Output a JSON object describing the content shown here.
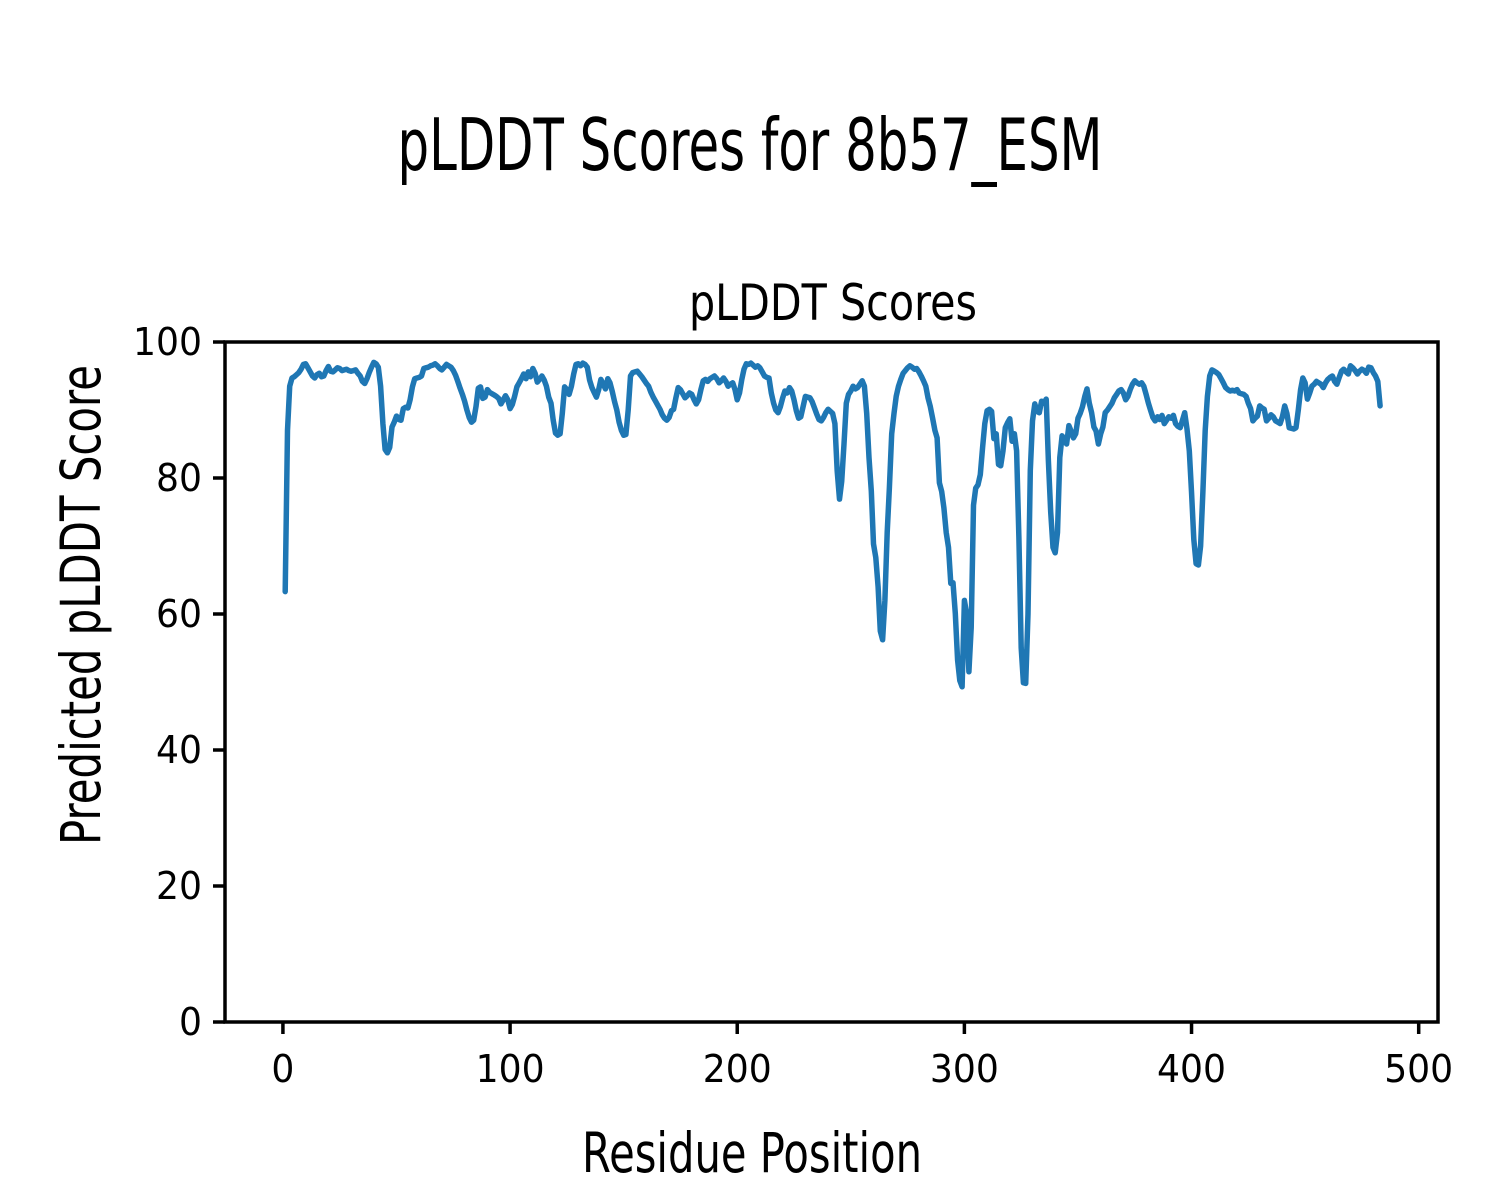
{
  "figure": {
    "suptitle": "pLDDT Scores for 8b57_ESM"
  },
  "chart_data": {
    "type": "line",
    "title": "pLDDT Scores",
    "xlabel": "Residue Position",
    "ylabel": "Predicted pLDDT Score",
    "xlim": [
      -25.5,
      508.5
    ],
    "ylim": [
      0,
      100
    ],
    "xticks": [
      0,
      100,
      200,
      300,
      400,
      500
    ],
    "yticks": [
      0,
      20,
      40,
      60,
      80,
      100
    ],
    "grid": false,
    "legend": "none",
    "line_color": "#1f77b4",
    "axis_color": "#000000",
    "background": "#ffffff",
    "series": [
      {
        "name": "pLDDT",
        "x_start": 1,
        "x_step": 1,
        "values": [
          63.3,
          87.0,
          93.5,
          94.7,
          94.9,
          95.2,
          95.5,
          96.0,
          96.7,
          96.8,
          96.2,
          95.6,
          95.0,
          94.7,
          95.2,
          95.4,
          94.9,
          95.0,
          95.8,
          96.4,
          95.7,
          95.6,
          95.9,
          96.2,
          96.1,
          95.8,
          95.9,
          96.0,
          95.8,
          95.7,
          95.8,
          95.9,
          95.4,
          95.0,
          94.2,
          93.9,
          94.6,
          95.5,
          96.3,
          97.0,
          96.8,
          96.3,
          93.5,
          88.0,
          84.2,
          83.7,
          84.5,
          87.5,
          88.2,
          89.1,
          88.6,
          88.5,
          90.2,
          90.4,
          90.3,
          91.5,
          93.4,
          94.6,
          94.7,
          94.8,
          95.0,
          96.1,
          96.2,
          96.3,
          96.5,
          96.6,
          96.8,
          96.5,
          96.1,
          95.9,
          96.3,
          96.7,
          96.5,
          96.3,
          95.8,
          95.1,
          94.2,
          93.2,
          92.3,
          91.3,
          90.0,
          88.9,
          88.2,
          88.5,
          90.5,
          93.2,
          93.4,
          91.7,
          91.9,
          93.0,
          92.6,
          92.4,
          92.2,
          92.0,
          91.7,
          90.9,
          91.5,
          92.1,
          91.5,
          90.2,
          90.8,
          92.0,
          93.4,
          94.0,
          94.6,
          95.3,
          94.6,
          95.6,
          94.9,
          96.1,
          95.4,
          94.1,
          94.5,
          95.0,
          94.4,
          93.5,
          91.9,
          91.0,
          88.5,
          86.6,
          86.3,
          86.5,
          89.5,
          93.4,
          93.0,
          92.3,
          93.5,
          95.3,
          96.7,
          96.8,
          96.5,
          96.9,
          96.7,
          96.3,
          94.4,
          93.3,
          92.6,
          91.9,
          93.0,
          94.5,
          93.8,
          93.1,
          94.6,
          94.0,
          92.7,
          91.2,
          90.0,
          88.2,
          87.0,
          86.3,
          86.4,
          90.0,
          95.0,
          95.5,
          95.6,
          95.7,
          95.3,
          94.9,
          94.4,
          93.9,
          93.5,
          92.6,
          91.9,
          91.3,
          90.7,
          90.1,
          89.3,
          88.8,
          88.5,
          88.9,
          89.9,
          90.1,
          91.8,
          93.3,
          93.0,
          92.4,
          91.8,
          92.1,
          92.5,
          92.3,
          91.5,
          90.9,
          91.5,
          93.0,
          94.3,
          94.5,
          94.2,
          94.6,
          94.8,
          95.0,
          94.6,
          94.0,
          94.3,
          94.7,
          94.2,
          93.5,
          93.8,
          94.0,
          93.0,
          91.5,
          92.5,
          94.5,
          96.0,
          96.8,
          96.7,
          96.9,
          96.6,
          96.3,
          96.5,
          96.2,
          95.6,
          95.0,
          94.8,
          94.7,
          92.5,
          91.0,
          90.0,
          89.6,
          90.5,
          91.8,
          92.8,
          92.5,
          93.3,
          92.8,
          91.5,
          89.9,
          88.8,
          89.0,
          90.5,
          92.0,
          91.9,
          91.8,
          91.2,
          90.3,
          89.4,
          88.6,
          88.4,
          88.9,
          89.6,
          90.1,
          89.8,
          89.5,
          88.0,
          81.0,
          76.9,
          79.5,
          85.0,
          91.0,
          92.3,
          92.8,
          93.5,
          93.1,
          93.3,
          93.8,
          94.3,
          93.5,
          89.5,
          83.0,
          78.1,
          70.3,
          68.3,
          64.0,
          57.5,
          56.2,
          62.0,
          72.0,
          78.6,
          86.5,
          89.5,
          92.0,
          93.5,
          94.5,
          95.4,
          95.8,
          96.2,
          96.5,
          96.3,
          96.0,
          96.1,
          95.6,
          95.0,
          94.3,
          93.5,
          91.8,
          90.5,
          88.8,
          87.0,
          85.9,
          79.3,
          78.0,
          75.6,
          72.0,
          69.8,
          64.5,
          64.6,
          60.1,
          53.2,
          50.2,
          49.3,
          62.0,
          60.0,
          51.5,
          58.0,
          76.0,
          78.5,
          79.0,
          80.5,
          84.5,
          88.0,
          89.9,
          90.1,
          89.8,
          85.8,
          86.5,
          82.0,
          81.8,
          84.0,
          87.4,
          88.1,
          88.7,
          85.4,
          86.5,
          84.0,
          71.2,
          55.0,
          49.9,
          49.8,
          60.0,
          81.1,
          88.4,
          90.9,
          89.8,
          89.6,
          91.3,
          91.0,
          91.6,
          82.5,
          75.0,
          69.8,
          69.0,
          72.0,
          83.0,
          86.2,
          85.5,
          85.0,
          87.7,
          86.9,
          85.9,
          86.5,
          88.8,
          89.5,
          90.5,
          92.0,
          93.1,
          91.0,
          89.6,
          87.5,
          86.9,
          85.0,
          86.5,
          87.5,
          89.6,
          90.0,
          90.5,
          91.0,
          91.8,
          92.3,
          92.8,
          93.0,
          92.5,
          91.5,
          92.0,
          93.0,
          93.8,
          94.3,
          94.0,
          93.8,
          94.0,
          93.5,
          92.3,
          91.0,
          89.9,
          88.9,
          88.4,
          89.0,
          88.6,
          89.2,
          88.0,
          88.5,
          89.0,
          88.8,
          89.2,
          88.0,
          87.6,
          87.4,
          88.5,
          89.6,
          87.2,
          84.0,
          78.0,
          71.0,
          67.4,
          67.2,
          70.0,
          78.0,
          87.0,
          92.0,
          95.0,
          95.9,
          95.7,
          95.5,
          95.2,
          94.6,
          94.0,
          93.3,
          93.0,
          92.8,
          92.9,
          92.8,
          93.0,
          92.5,
          92.4,
          92.3,
          92.0,
          91.0,
          90.2,
          88.4,
          88.8,
          89.1,
          90.6,
          90.3,
          90.1,
          88.4,
          88.8,
          89.3,
          89.0,
          88.4,
          88.2,
          88.0,
          89.0,
          90.6,
          89.5,
          87.4,
          87.3,
          87.2,
          87.4,
          90.0,
          93.0,
          94.7,
          94.0,
          91.6,
          92.5,
          93.5,
          93.8,
          94.2,
          94.0,
          93.8,
          93.3,
          94.0,
          94.5,
          94.8,
          95.0,
          94.2,
          93.8,
          94.8,
          95.7,
          96.0,
          95.6,
          95.3,
          96.5,
          96.2,
          95.8,
          95.3,
          95.7,
          96.0,
          95.8,
          95.4,
          96.3,
          96.2,
          95.5,
          95.0,
          94.2,
          90.6
        ]
      }
    ]
  }
}
